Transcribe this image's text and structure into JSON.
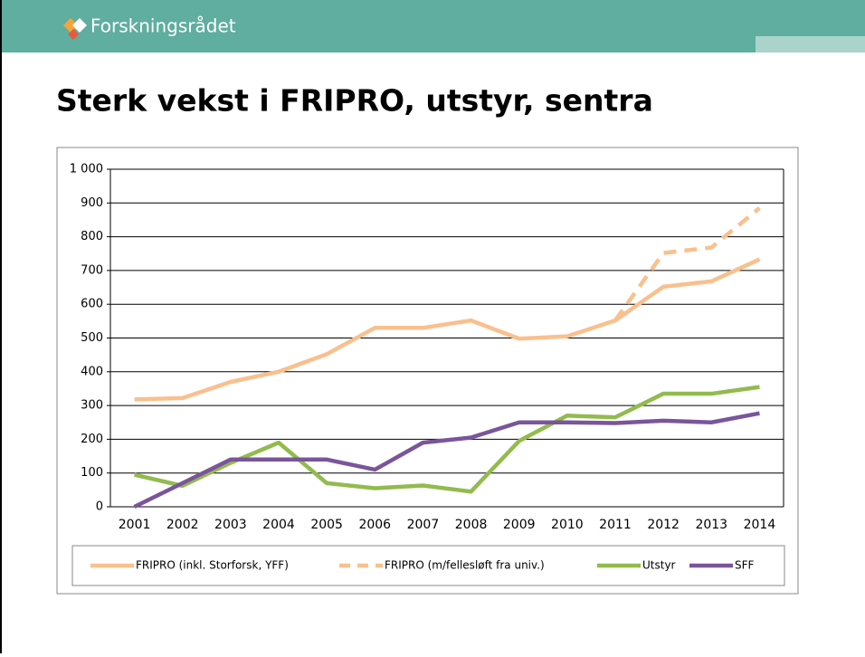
{
  "header": {
    "logo": "Forskningsrådet"
  },
  "chart_data": {
    "type": "line",
    "title": "Sterk vekst i FRIPRO, utstyr, sentra",
    "categories": [
      "2001",
      "2002",
      "2003",
      "2004",
      "2005",
      "2006",
      "2007",
      "2008",
      "2009",
      "2010",
      "2011",
      "2012",
      "2013",
      "2014"
    ],
    "series": [
      {
        "name": "FRIPRO (inkl. Storforsk, YFF)",
        "color": "#f9c08e",
        "dash": false,
        "values": [
          318,
          322,
          370,
          400,
          452,
          530,
          530,
          552,
          498,
          505,
          552,
          652,
          668,
          733
        ]
      },
      {
        "name": "FRIPRO (m/fellesløft fra univ.)",
        "color": "#f9c08e",
        "dash": true,
        "values": [
          null,
          null,
          null,
          null,
          null,
          null,
          null,
          null,
          null,
          null,
          552,
          752,
          768,
          885
        ]
      },
      {
        "name": "Utstyr",
        "color": "#92bb4e",
        "dash": false,
        "values": [
          95,
          62,
          130,
          190,
          70,
          55,
          63,
          45,
          195,
          270,
          265,
          335,
          335,
          355
        ]
      },
      {
        "name": "SFF",
        "color": "#7a559b",
        "dash": false,
        "values": [
          0,
          70,
          140,
          140,
          140,
          110,
          190,
          205,
          250,
          250,
          248,
          255,
          250,
          277
        ]
      }
    ],
    "ylim": [
      0,
      1000
    ],
    "yticks": [
      0,
      100,
      200,
      300,
      400,
      500,
      600,
      700,
      800,
      900,
      {
        "value": 1000,
        "label": "1 000"
      }
    ],
    "grid": true
  }
}
